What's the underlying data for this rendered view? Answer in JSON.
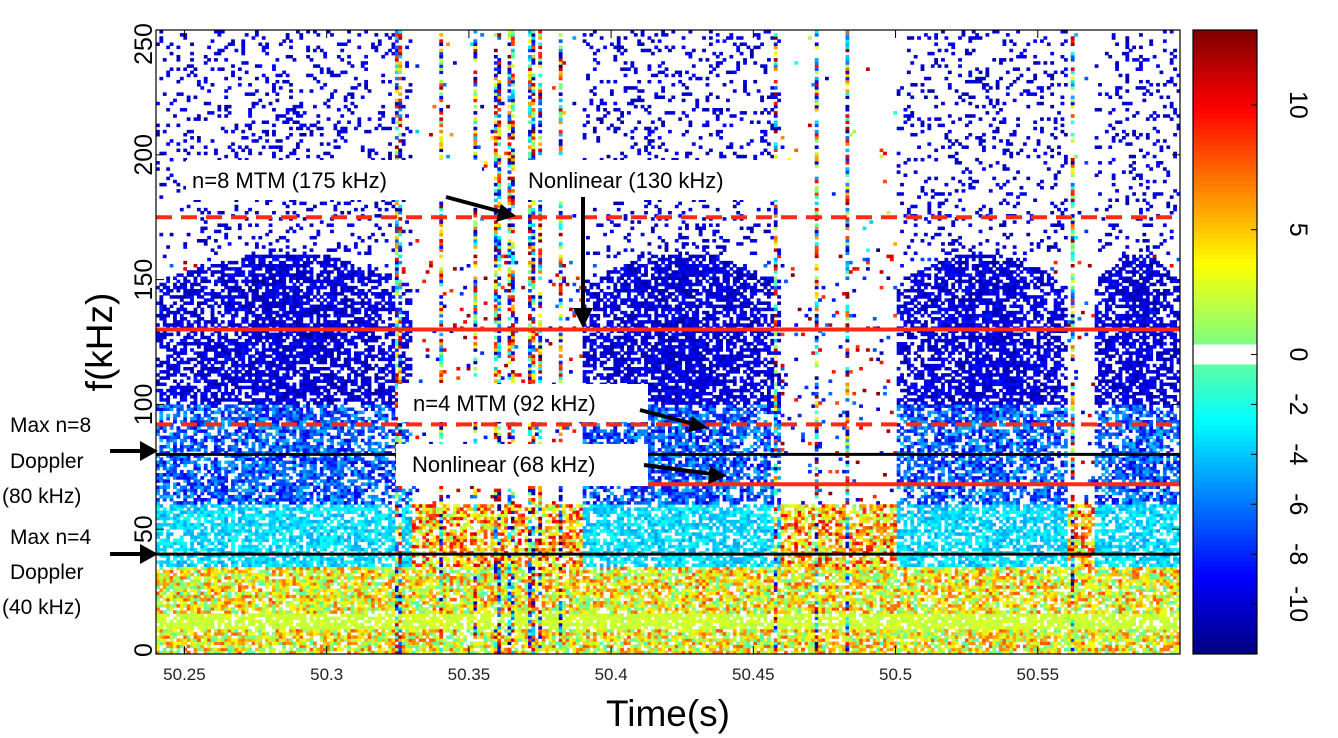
{
  "chart_data": {
    "type": "heatmap",
    "title": "",
    "xlabel": "Time(s)",
    "ylabel": "f(kHz)",
    "xlim": [
      50.24,
      50.6
    ],
    "ylim": [
      0,
      250
    ],
    "x_ticks": [
      "50.25",
      "50.3",
      "50.35",
      "50.4",
      "50.45",
      "50.5",
      "50.55"
    ],
    "x_tick_values": [
      50.25,
      50.3,
      50.35,
      50.4,
      50.45,
      50.5,
      50.55
    ],
    "y_ticks": [
      "0",
      "50",
      "100",
      "150",
      "200",
      "250"
    ],
    "y_tick_values": [
      0,
      50,
      100,
      150,
      200,
      250
    ],
    "colorbar": {
      "range": [
        -12,
        13
      ],
      "tick_labels": [
        "10",
        "5",
        "0",
        "-2",
        "-4",
        "-6",
        "-8",
        "-10"
      ],
      "tick_values": [
        10,
        5,
        0,
        -2,
        -4,
        -6,
        -8,
        -10
      ],
      "blank_band": [
        -0.4,
        0.4
      ],
      "colormap": "jet"
    },
    "reference_lines": [
      {
        "label": "n=8 MTM (175 kHz)",
        "freq": 175,
        "style": "dashed",
        "color": "#ff2a12",
        "x_start": 50.24
      },
      {
        "label": "Nonlinear (130 kHz)",
        "freq": 130,
        "style": "solid",
        "color": "#ff2a12",
        "x_start": 50.24
      },
      {
        "label": "n=4 MTM (92 kHz)",
        "freq": 92,
        "style": "dashed",
        "color": "#ff2a12",
        "x_start": 50.24
      },
      {
        "label": "Max n=8 Doppler (80 kHz)",
        "freq": 80,
        "style": "solid",
        "color": "#000000",
        "x_start": 50.24
      },
      {
        "label": "Nonlinear (68 kHz)",
        "freq": 68,
        "style": "solid",
        "color": "#ff2a12",
        "x_start": 50.41
      },
      {
        "label": "Max n=4 Doppler (40 kHz)",
        "freq": 40,
        "style": "solid",
        "color": "#000000",
        "x_start": 50.24
      }
    ],
    "annotations": {
      "n8_mtm": "n=8 MTM (175 kHz)",
      "nonlinear_130": "Nonlinear (130 kHz)",
      "n4_mtm": "n=4 MTM (92 kHz)",
      "nonlinear_68": "Nonlinear (68 kHz)",
      "max_n8_line1": "Max n=8",
      "max_n8_line2": "Doppler",
      "max_n8_line3": "(80 kHz)",
      "max_n4_line1": "Max n=4",
      "max_n4_line2": "Doppler",
      "max_n4_line3": "(40 kHz)"
    },
    "activity_bursts_s": [
      [
        50.24,
        50.33
      ],
      [
        50.39,
        50.46
      ],
      [
        50.5,
        50.56
      ],
      [
        50.57,
        50.6
      ]
    ],
    "vertical_streak_times_s": [
      50.325,
      50.34,
      50.352,
      50.36,
      50.365,
      50.372,
      50.375,
      50.382,
      50.458,
      50.472,
      50.483,
      50.562
    ]
  }
}
